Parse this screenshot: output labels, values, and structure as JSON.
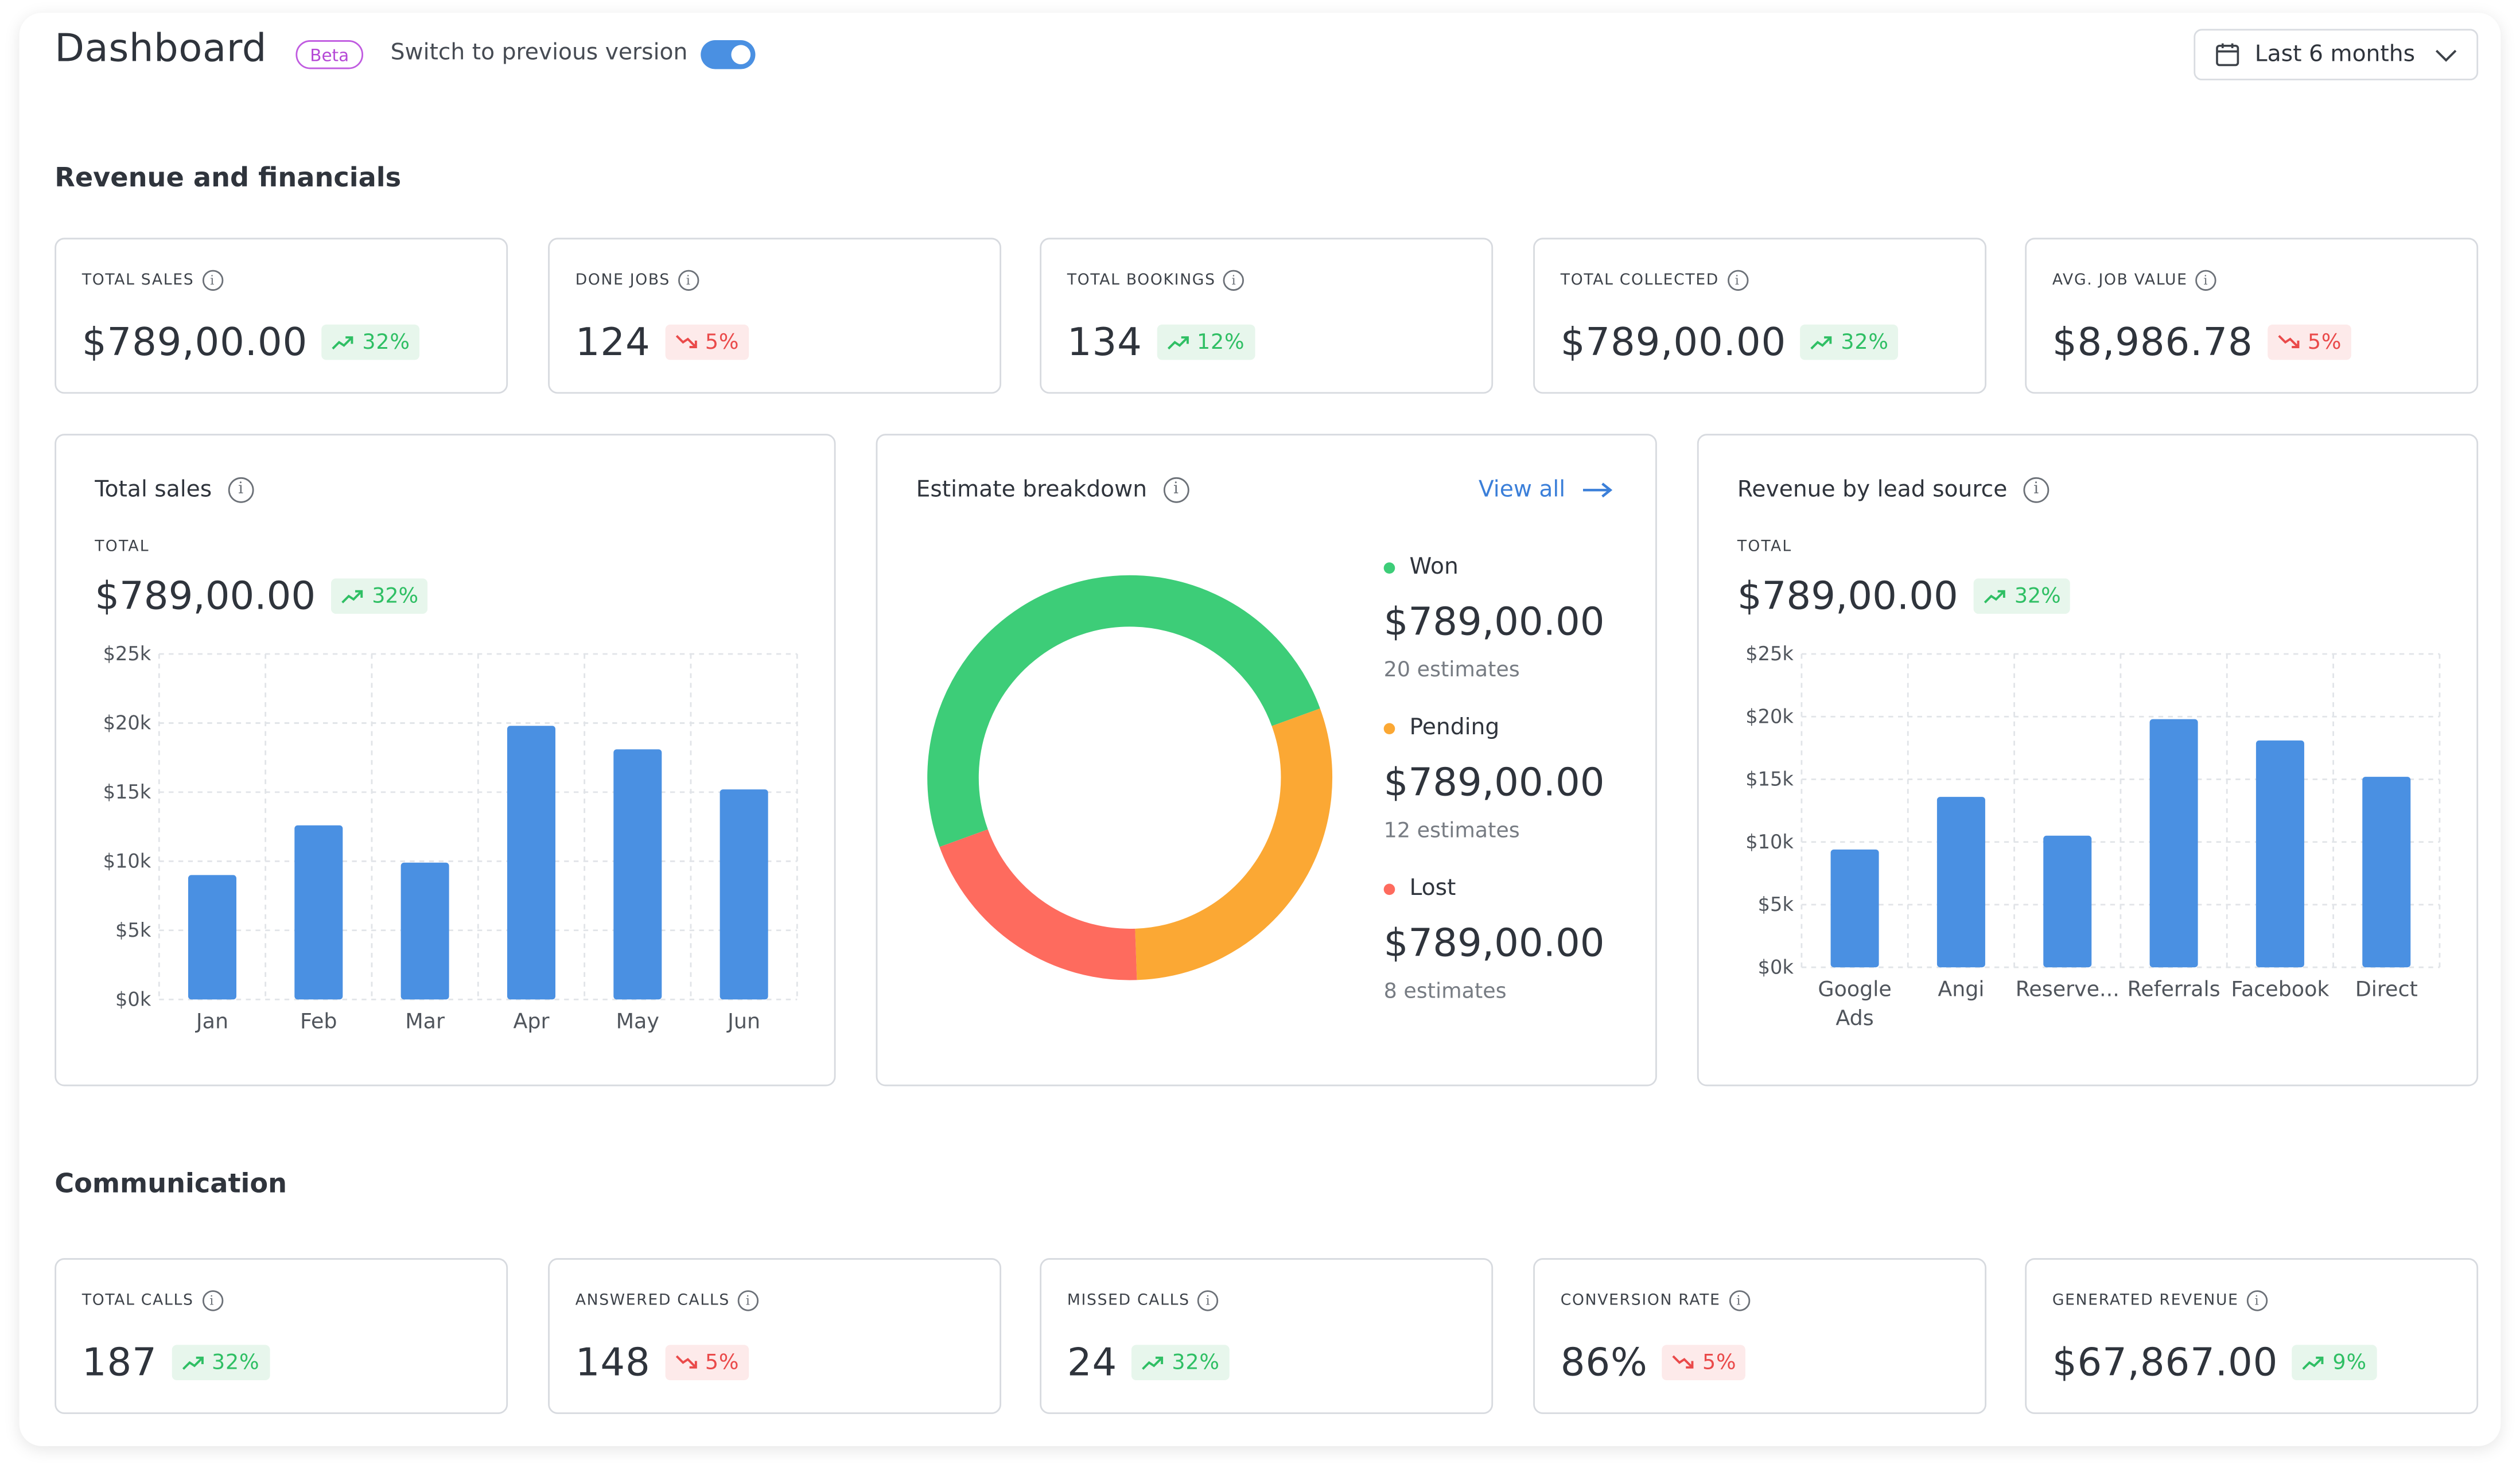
{
  "header": {
    "title": "Dashboard",
    "beta": "Beta",
    "switch_label": "Switch to previous version",
    "date_range": "Last 6 months"
  },
  "sections": {
    "revenue": "Revenue and financials",
    "communication": "Communication"
  },
  "kpis_revenue": [
    {
      "label": "TOTAL SALES",
      "value": "$789,00.00",
      "change": "32%",
      "trend": "up"
    },
    {
      "label": "DONE JOBS",
      "value": "124",
      "change": "5%",
      "trend": "down"
    },
    {
      "label": "TOTAL BOOKINGS",
      "value": "134",
      "change": "12%",
      "trend": "up"
    },
    {
      "label": "TOTAL COLLECTED",
      "value": "$789,00.00",
      "change": "32%",
      "trend": "up"
    },
    {
      "label": "AVG. JOB VALUE",
      "value": "$8,986.78",
      "change": "5%",
      "trend": "down"
    }
  ],
  "kpis_communication": [
    {
      "label": "TOTAL CALLS",
      "value": "187",
      "change": "32%",
      "trend": "up"
    },
    {
      "label": "ANSWERED CALLS",
      "value": "148",
      "change": "5%",
      "trend": "down"
    },
    {
      "label": "MISSED CALLS",
      "value": "24",
      "change": "32%",
      "trend": "up"
    },
    {
      "label": "CONVERSION RATE",
      "value": "86%",
      "change": "5%",
      "trend": "down"
    },
    {
      "label": "GENERATED REVENUE",
      "value": "$67,867.00",
      "change": "9%",
      "trend": "up"
    }
  ],
  "total_sales_card": {
    "title": "Total sales",
    "sub": "TOTAL",
    "total": "$789,00.00",
    "change": "32%"
  },
  "estimate_card": {
    "title": "Estimate breakdown",
    "view_all": "View all",
    "items": [
      {
        "name": "Won",
        "value": "$789,00.00",
        "sub": "20 estimates"
      },
      {
        "name": "Pending",
        "value": "$789,00.00",
        "sub": "12 estimates"
      },
      {
        "name": "Lost",
        "value": "$789,00.00",
        "sub": "8 estimates"
      }
    ]
  },
  "lead_card": {
    "title": "Revenue by lead source",
    "sub": "TOTAL",
    "total": "$789,00.00",
    "change": "32%"
  },
  "colors": {
    "bar": "#4a90e2",
    "won": "#3dcd78",
    "pending": "#fba834",
    "lost": "#fe6b5e",
    "up": "#2fbf64",
    "down": "#ea4a4a",
    "accent": "#3b7fd9"
  },
  "icons": {
    "calendar": "calendar-icon",
    "chevron": "chevron-down-icon",
    "info": "info-icon",
    "arrow": "arrow-right-icon",
    "trend_up": "trend-up-icon",
    "trend_down": "trend-down-icon"
  },
  "chart_data": [
    {
      "type": "bar",
      "title": "Total sales",
      "categories": [
        "Jan",
        "Feb",
        "Mar",
        "Apr",
        "May",
        "Jun"
      ],
      "values": [
        9000,
        12600,
        9900,
        19800,
        18100,
        15200
      ],
      "y_ticks": [
        "$0k",
        "$5k",
        "$10k",
        "$15k",
        "$20k",
        "$25k"
      ],
      "ylim": [
        0,
        25000
      ],
      "grid": true
    },
    {
      "type": "pie",
      "title": "Estimate breakdown",
      "categories": [
        "Won",
        "Pending",
        "Lost"
      ],
      "values": [
        20,
        12,
        8
      ],
      "donut": true
    },
    {
      "type": "bar",
      "title": "Revenue by lead source",
      "categories": [
        "Google Ads",
        "Angi",
        "Reserve...",
        "Referrals",
        "Facebook",
        "Direct"
      ],
      "values": [
        9400,
        13600,
        10500,
        19800,
        18100,
        15200
      ],
      "y_ticks": [
        "$0k",
        "$5k",
        "$10k",
        "$15k",
        "$20k",
        "$25k"
      ],
      "ylim": [
        0,
        25000
      ],
      "grid": true
    }
  ]
}
